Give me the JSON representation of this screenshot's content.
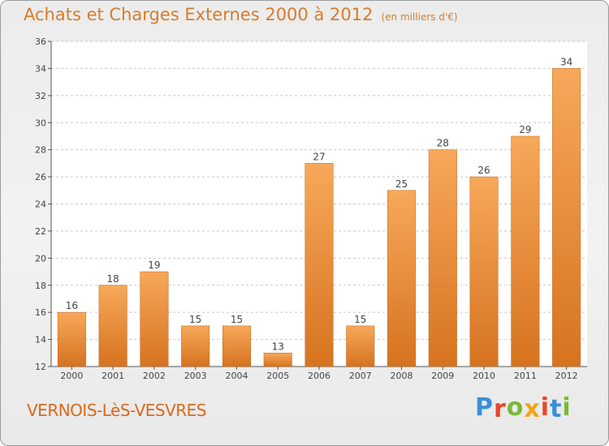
{
  "chart_data": {
    "type": "bar",
    "title": "Achats et Charges Externes 2000 à 2012",
    "subtitle": "(en milliers d'€)",
    "categories": [
      "2000",
      "2001",
      "2002",
      "2003",
      "2004",
      "2005",
      "2006",
      "2007",
      "2008",
      "2009",
      "2010",
      "2011",
      "2012"
    ],
    "values": [
      16,
      18,
      19,
      15,
      15,
      13,
      27,
      15,
      25,
      28,
      26,
      29,
      34
    ],
    "ylim": [
      12,
      36
    ],
    "yticks": [
      12,
      14,
      16,
      18,
      20,
      22,
      24,
      26,
      28,
      30,
      32,
      34,
      36
    ],
    "grid": true,
    "colors": {
      "bar_light": "#f7a85a",
      "bar_dark": "#d6731f",
      "title": "#d87c2a"
    }
  },
  "place_name": "VERNOIS-LèS-VESVRES",
  "logo": {
    "letters": [
      "P",
      "r",
      "o",
      "x",
      "i",
      "t",
      "i"
    ],
    "colors": [
      "#3a8fd8",
      "#e8462c",
      "#7ab83a",
      "#f2a31a",
      "#e8462c",
      "#3a8fd8",
      "#7ab83a"
    ]
  }
}
